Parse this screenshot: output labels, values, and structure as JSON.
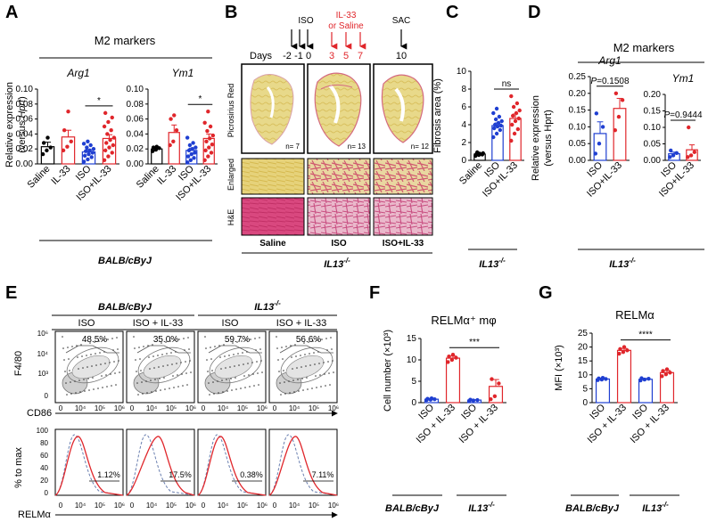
{
  "colors": {
    "black": "#000000",
    "red": "#e0262b",
    "blue": "#1f3fd1",
    "grey": "#9a9a9a",
    "yellow": "#e7d57a",
    "pink": "#e9b8c8",
    "he": "#d9487f"
  },
  "panels": {
    "A": "A",
    "B": "B",
    "C": "C",
    "D": "D",
    "E": "E",
    "F": "F",
    "G": "G"
  },
  "panelA": {
    "header": "M2 markers",
    "ylabel_line1": "Relative expression",
    "ylabel_line2_pre": "(versus ",
    "ylabel_line2_gene": "Hprt",
    "ylabel_line2_post": ")",
    "strain": "BALB/cByJ"
  },
  "panelB": {
    "timeline": {
      "days_label": "Days",
      "iso_label": "ISO",
      "il33_line1": "IL-33",
      "il33_line2": "or Saline",
      "sac_label": "SAC",
      "black_days": [
        "-2",
        "-1",
        "0"
      ],
      "red_days": [
        "3",
        "5",
        "7"
      ],
      "end_day": "10"
    },
    "row_labels": {
      "picro": "Picrosirius Red",
      "enlarged": "Enlarged",
      "he": "H&E"
    },
    "n_labels": [
      "n= 7",
      "n= 13",
      "n= 12"
    ],
    "groups": [
      "Saline",
      "ISO",
      "ISO+IL-33"
    ],
    "strain": "IL13",
    "strain_sup": "-/-"
  },
  "panelD": {
    "header": "M2 markers",
    "ylabel_line1": "Relative expression",
    "ylabel_line2": "(versus Hprt)",
    "strain": "IL13",
    "strain_sup": "-/-"
  },
  "panelC": {
    "strain": "IL13",
    "strain_sup": "-/-"
  },
  "panelE": {
    "strain1": "BALB/cByJ",
    "strain2": "IL13",
    "strain2_sup": "-/-",
    "conditions": [
      "ISO",
      "ISO + IL-33",
      "ISO",
      "ISO + IL-33"
    ],
    "f480_percents": [
      "48.5%",
      "35.0%",
      "59.7%",
      "56.6%"
    ],
    "relm_percents": [
      "1.12%",
      "17.5%",
      "0.38%",
      "7.11%"
    ],
    "y_label_top": "F4/80",
    "x_label_top": "CD86",
    "y_label_bottom": "% to max",
    "x_label_bottom": "RELMα",
    "log_ticks_y": [
      "10⁶",
      "10⁴",
      "10³",
      "0"
    ],
    "log_ticks_x": [
      "0",
      "10⁴",
      "10⁵",
      "10⁶"
    ],
    "pct_ticks": [
      "100",
      "80",
      "60",
      "40",
      "20",
      "0"
    ]
  },
  "panelF": {
    "strain1": "BALB/cByJ",
    "strain2": "IL13",
    "strain2_sup": "-/-"
  },
  "panelG": {
    "strain1": "BALB/cByJ",
    "strain2": "IL13",
    "strain2_sup": "-/-"
  },
  "chart_data": [
    {
      "id": "A_Arg1",
      "type": "bar",
      "title": "Arg1",
      "categories": [
        "Saline",
        "IL-33",
        "ISO",
        "ISO+IL-33"
      ],
      "bar_colors": [
        "#000000",
        "#e0262b",
        "#1f3fd1",
        "#e0262b"
      ],
      "values": [
        0.023,
        0.036,
        0.016,
        0.034
      ],
      "errors": [
        0.006,
        0.009,
        0.003,
        0.005
      ],
      "points": [
        [
          0.013,
          0.018,
          0.022,
          0.028,
          0.035
        ],
        [
          0.018,
          0.023,
          0.03,
          0.045,
          0.07
        ],
        [
          0.003,
          0.006,
          0.009,
          0.011,
          0.013,
          0.015,
          0.017,
          0.018,
          0.02,
          0.022,
          0.025,
          0.027,
          0.03
        ],
        [
          0.005,
          0.01,
          0.015,
          0.018,
          0.022,
          0.025,
          0.028,
          0.032,
          0.035,
          0.04,
          0.045,
          0.05,
          0.056,
          0.062,
          0.068
        ]
      ],
      "ylim": [
        0,
        0.1
      ],
      "yticks": [
        "0.00",
        "0.02",
        "0.04",
        "0.06",
        "0.08",
        "0.10"
      ],
      "sig": {
        "label": "*",
        "from": 2,
        "to": 3
      }
    },
    {
      "id": "A_Ym1",
      "type": "bar",
      "title": "Ym1",
      "categories": [
        "Saline",
        "IL-33",
        "ISO",
        "ISO+IL-33"
      ],
      "bar_colors": [
        "#000000",
        "#e0262b",
        "#1f3fd1",
        "#e0262b"
      ],
      "values": [
        0.02,
        0.042,
        0.018,
        0.034
      ],
      "errors": [
        0.002,
        0.01,
        0.003,
        0.006
      ],
      "points": [
        [
          0.017,
          0.019,
          0.021,
          0.022,
          0.023
        ],
        [
          0.025,
          0.03,
          0.045,
          0.06,
          0.065
        ],
        [
          0.002,
          0.005,
          0.008,
          0.01,
          0.013,
          0.015,
          0.018,
          0.02,
          0.022,
          0.025,
          0.028,
          0.035
        ],
        [
          0.005,
          0.01,
          0.015,
          0.018,
          0.022,
          0.026,
          0.03,
          0.034,
          0.038,
          0.044,
          0.05,
          0.055,
          0.07
        ]
      ],
      "ylim": [
        0,
        0.1
      ],
      "yticks": [
        "0.00",
        "0.02",
        "0.04",
        "0.06",
        "0.08",
        "0.10"
      ],
      "sig": {
        "label": "*",
        "from": 2,
        "to": 3
      }
    },
    {
      "id": "C_fibrosis",
      "type": "bar",
      "title": "",
      "categories": [
        "Saline",
        "ISO",
        "ISO+IL-33"
      ],
      "bar_colors": [
        "#000000",
        "#1f3fd1",
        "#e0262b"
      ],
      "values": [
        0.7,
        3.9,
        4.7
      ],
      "errors": [
        0.1,
        0.3,
        0.5
      ],
      "points": [
        [
          0.5,
          0.6,
          0.65,
          0.7,
          0.75,
          0.8,
          0.9
        ],
        [
          2.6,
          3.0,
          3.4,
          3.6,
          3.8,
          3.9,
          4.0,
          4.2,
          4.4,
          4.6,
          4.9,
          5.3,
          5.8
        ],
        [
          2.2,
          3.0,
          3.5,
          4.0,
          4.4,
          4.7,
          5.0,
          5.3,
          5.6,
          6.0,
          6.4,
          7.2
        ]
      ],
      "ylim": [
        0,
        10
      ],
      "yticks": [
        "0",
        "2",
        "4",
        "6",
        "8",
        "10"
      ],
      "ylabel": "Fibrosis area (%)",
      "sig": {
        "label": "ns",
        "from": 1,
        "to": 2
      }
    },
    {
      "id": "D_Arg1",
      "type": "bar",
      "title": "Arg1",
      "categories": [
        "ISO",
        "ISO+IL-33"
      ],
      "bar_colors": [
        "#1f3fd1",
        "#e0262b"
      ],
      "values": [
        0.08,
        0.155
      ],
      "errors": [
        0.035,
        0.03
      ],
      "points": [
        [
          0.02,
          0.05,
          0.1,
          0.14
        ],
        [
          0.09,
          0.13,
          0.18,
          0.2
        ]
      ],
      "ylim": [
        0,
        0.25
      ],
      "yticks": [
        "0.00",
        "0.05",
        "0.10",
        "0.15",
        "0.20",
        "0.25"
      ],
      "sig": {
        "label_italic": "P",
        "label_rest": "=0.1508",
        "from": 0,
        "to": 1
      }
    },
    {
      "id": "D_Ym1",
      "type": "bar",
      "title": "Ym1",
      "categories": [
        "ISO",
        "ISO+IL-33"
      ],
      "bar_colors": [
        "#1f3fd1",
        "#e0262b"
      ],
      "values": [
        0.02,
        0.032
      ],
      "errors": [
        0.005,
        0.015
      ],
      "points": [
        [
          0.01,
          0.015,
          0.022,
          0.03
        ],
        [
          0.01,
          0.015,
          0.025,
          0.1
        ]
      ],
      "ylim": [
        0,
        0.2
      ],
      "yticks": [
        "0.00",
        "0.05",
        "0.10",
        "0.15",
        "0.20"
      ],
      "sig": {
        "label_italic": "P",
        "label_rest": "=0.9444",
        "from": 0,
        "to": 1
      }
    },
    {
      "id": "F_cells",
      "type": "bar",
      "title": "RELMα⁺ mφ",
      "categories": [
        "ISO",
        "ISO + IL-33",
        "ISO",
        "ISO + IL-33"
      ],
      "bar_colors": [
        "#1f3fd1",
        "#e0262b",
        "#1f3fd1",
        "#e0262b"
      ],
      "values": [
        0.8,
        10.4,
        0.6,
        3.8
      ],
      "errors": [
        0.1,
        0.5,
        0.1,
        1.6
      ],
      "points": [
        [
          0.6,
          0.7,
          0.8,
          0.9,
          1.0
        ],
        [
          9.5,
          10.0,
          10.5,
          10.8,
          11.2
        ],
        [
          0.4,
          0.5,
          0.6,
          0.7
        ],
        [
          0.8,
          1.5,
          4.5,
          5.5
        ]
      ],
      "ylim": [
        0,
        15
      ],
      "yticks": [
        "0",
        "5",
        "10",
        "15"
      ],
      "ylabel": "Cell number (×10³)",
      "sig": {
        "label": "***",
        "from": 1,
        "to": 3
      }
    },
    {
      "id": "G_mfi",
      "type": "bar",
      "title": "RELMα",
      "categories": [
        "ISO",
        "ISO + IL-33",
        "ISO",
        "ISO + IL-33"
      ],
      "bar_colors": [
        "#1f3fd1",
        "#e0262b",
        "#1f3fd1",
        "#e0262b"
      ],
      "values": [
        8.5,
        18.8,
        8.4,
        10.8
      ],
      "errors": [
        0.3,
        0.7,
        0.3,
        0.8
      ],
      "points": [
        [
          8.1,
          8.3,
          8.5,
          8.7,
          8.9
        ],
        [
          17.6,
          18.2,
          18.8,
          19.3,
          20.0
        ],
        [
          8.0,
          8.3,
          8.6,
          8.8
        ],
        [
          9.5,
          10.2,
          10.8,
          11.4,
          12.0
        ]
      ],
      "ylim": [
        0,
        25
      ],
      "yticks": [
        "0",
        "5",
        "10",
        "15",
        "20",
        "25"
      ],
      "ylabel": "MFI (×10³)",
      "sig": {
        "label": "****",
        "from": 1,
        "to": 3
      }
    }
  ]
}
